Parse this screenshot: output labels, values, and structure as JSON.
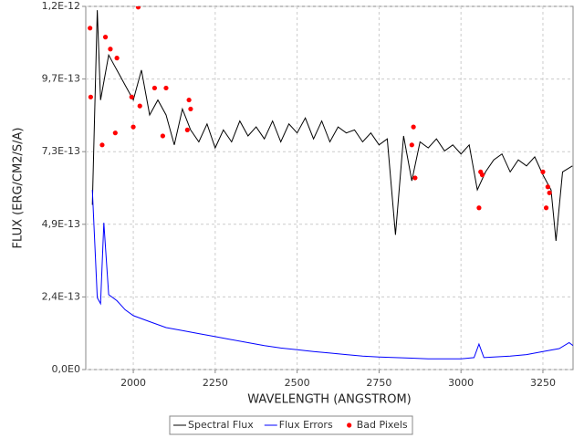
{
  "chart_data": {
    "type": "line",
    "xlabel": "WAVELENGTH (ANGSTROM)",
    "ylabel": "FLUX (ERG/CM2/S/A)",
    "xlim": [
      1855,
      3342
    ],
    "xticks": [
      2000,
      2250,
      2500,
      2750,
      3000,
      3250
    ],
    "ylim": [
      0,
      1.2125e-12
    ],
    "yticks": [
      {
        "value": 0,
        "label": "0,0E0"
      },
      {
        "value": 2.425e-13,
        "label": "2,4E-13"
      },
      {
        "value": 4.85e-13,
        "label": "4,9E-13"
      },
      {
        "value": 7.275e-13,
        "label": "7,3E-13"
      },
      {
        "value": 9.7e-13,
        "label": "9,7E-13"
      },
      {
        "value": 1.2125e-12,
        "label": "1,2E-12"
      }
    ],
    "grid": true,
    "legend": "bottom",
    "series": [
      {
        "name": "Spectral Flux",
        "color": "#000000",
        "style": "line",
        "x": [
          1875,
          1890,
          1900,
          1925,
          1950,
          1975,
          2000,
          2025,
          2050,
          2075,
          2100,
          2125,
          2150,
          2175,
          2200,
          2225,
          2250,
          2275,
          2300,
          2325,
          2350,
          2375,
          2400,
          2425,
          2450,
          2475,
          2500,
          2525,
          2550,
          2575,
          2600,
          2625,
          2650,
          2675,
          2700,
          2725,
          2750,
          2775,
          2800,
          2825,
          2850,
          2875,
          2900,
          2925,
          2950,
          2975,
          3000,
          3025,
          3050,
          3075,
          3100,
          3125,
          3150,
          3175,
          3200,
          3225,
          3250,
          3275,
          3290,
          3310,
          3340
        ],
        "values": [
          5.5e-13,
          1.2e-12,
          9e-13,
          1.05e-12,
          1e-12,
          9.5e-13,
          9e-13,
          1e-12,
          8.5e-13,
          9e-13,
          8.5e-13,
          7.5e-13,
          8.7e-13,
          8e-13,
          7.6e-13,
          8.2e-13,
          7.4e-13,
          8e-13,
          7.6e-13,
          8.3e-13,
          7.8e-13,
          8.1e-13,
          7.7e-13,
          8.3e-13,
          7.6e-13,
          8.2e-13,
          7.9e-13,
          8.4e-13,
          7.7e-13,
          8.3e-13,
          7.6e-13,
          8.1e-13,
          7.9e-13,
          8e-13,
          7.6e-13,
          7.9e-13,
          7.5e-13,
          7.7e-13,
          4.5e-13,
          7.8e-13,
          6.3e-13,
          7.6e-13,
          7.4e-13,
          7.7e-13,
          7.3e-13,
          7.5e-13,
          7.2e-13,
          7.5e-13,
          6e-13,
          6.6e-13,
          7e-13,
          7.2e-13,
          6.6e-13,
          7e-13,
          6.8e-13,
          7.1e-13,
          6.5e-13,
          6e-13,
          4.3e-13,
          6.6e-13,
          6.8e-13
        ]
      },
      {
        "name": "Flux Errors",
        "color": "#0000ff",
        "style": "line",
        "x": [
          1875,
          1890,
          1900,
          1910,
          1925,
          1950,
          1975,
          2000,
          2050,
          2100,
          2150,
          2200,
          2250,
          2300,
          2350,
          2400,
          2450,
          2500,
          2550,
          2600,
          2650,
          2700,
          2750,
          2800,
          2850,
          2900,
          2950,
          3000,
          3040,
          3055,
          3070,
          3100,
          3150,
          3200,
          3250,
          3300,
          3330,
          3342
        ],
        "values": [
          6e-13,
          2.4e-13,
          2.2e-13,
          4.9e-13,
          2.5e-13,
          2.3e-13,
          2e-13,
          1.8e-13,
          1.6e-13,
          1.4e-13,
          1.3e-13,
          1.2e-13,
          1.1e-13,
          1e-13,
          9e-14,
          8e-14,
          7.2e-14,
          6.6e-14,
          6e-14,
          5.5e-14,
          5e-14,
          4.5e-14,
          4.2e-14,
          4e-14,
          3.8e-14,
          3.6e-14,
          3.6e-14,
          3.6e-14,
          4e-14,
          8.5e-14,
          4e-14,
          4.2e-14,
          4.5e-14,
          5e-14,
          6e-14,
          7e-14,
          9e-14,
          8e-14
        ]
      },
      {
        "name": "Bad Pixels",
        "color": "#ff0000",
        "style": "points",
        "x": [
          1868,
          1870,
          1905,
          1915,
          1930,
          1945,
          1950,
          1995,
          2000,
          2015,
          2020,
          2065,
          2090,
          2100,
          2165,
          2170,
          2175,
          2850,
          2855,
          2860,
          3055,
          3060,
          3065,
          3250,
          3260,
          3265,
          3270
        ],
        "values": [
          1.14e-12,
          9.1e-13,
          7.5e-13,
          1.11e-12,
          1.07e-12,
          7.9e-13,
          1.04e-12,
          9.1e-13,
          8.1e-13,
          1.21e-12,
          8.8e-13,
          9.4e-13,
          7.8e-13,
          9.4e-13,
          8e-13,
          9e-13,
          8.7e-13,
          7.5e-13,
          8.1e-13,
          6.4e-13,
          5.4e-13,
          6.6e-13,
          6.5e-13,
          6.6e-13,
          5.4e-13,
          6.1e-13,
          5.9e-13
        ]
      }
    ]
  }
}
